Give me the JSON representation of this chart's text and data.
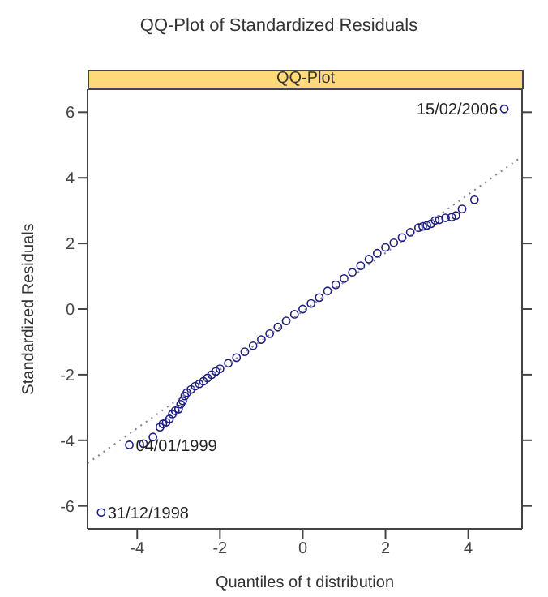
{
  "chart_data": {
    "type": "scatter",
    "title": "QQ-Plot of Standardized Residuals",
    "subtitle": "QQ-Plot",
    "xlabel": "Quantiles of t distribution",
    "ylabel": "Standardized Residuals",
    "xlim": [
      -5.2,
      5.3
    ],
    "ylim": [
      -6.7,
      6.7
    ],
    "xticks": [
      -4,
      -2,
      0,
      2,
      4
    ],
    "yticks": [
      -6,
      -4,
      -2,
      0,
      2,
      4,
      6
    ],
    "marker": "circle",
    "series": [
      {
        "color": "#1c1c80",
        "x": [
          -4.87,
          -4.19,
          -3.85,
          -3.62,
          -3.45,
          -3.38,
          -3.3,
          -3.22,
          -3.15,
          -3.08,
          -3.0,
          -2.95,
          -2.9,
          -2.85,
          -2.8,
          -2.7,
          -2.6,
          -2.5,
          -2.4,
          -2.3,
          -2.2,
          -2.1,
          -2.0,
          -1.8,
          -1.6,
          -1.4,
          -1.2,
          -1.0,
          -0.8,
          -0.6,
          -0.4,
          -0.2,
          0,
          0.2,
          0.4,
          0.6,
          0.8,
          1.0,
          1.2,
          1.4,
          1.6,
          1.8,
          2.0,
          2.2,
          2.4,
          2.6,
          2.8,
          2.9,
          3.0,
          3.1,
          3.2,
          3.3,
          3.45,
          3.6,
          3.7,
          3.85,
          4.15,
          4.87
        ],
        "values": [
          -6.2,
          -4.14,
          -4.1,
          -3.9,
          -3.6,
          -3.5,
          -3.45,
          -3.35,
          -3.2,
          -3.1,
          -3.05,
          -2.9,
          -2.8,
          -2.65,
          -2.55,
          -2.45,
          -2.35,
          -2.28,
          -2.2,
          -2.1,
          -2.0,
          -1.9,
          -1.82,
          -1.65,
          -1.48,
          -1.3,
          -1.12,
          -0.93,
          -0.75,
          -0.55,
          -0.36,
          -0.16,
          0,
          0.17,
          0.35,
          0.55,
          0.74,
          0.93,
          1.12,
          1.32,
          1.52,
          1.7,
          1.88,
          2.02,
          2.18,
          2.34,
          2.48,
          2.52,
          2.55,
          2.6,
          2.7,
          2.72,
          2.78,
          2.8,
          2.85,
          3.05,
          3.33,
          6.1
        ]
      },
      {
        "type": "line",
        "marker": "none",
        "color": "#7f7f9f",
        "line_style": "dotted",
        "x": [
          -5.2,
          5.3
        ],
        "values": [
          -4.7,
          4.65
        ]
      }
    ],
    "annotations": [
      {
        "text": "15/02/2006",
        "x": 4.87,
        "y": 6.1
      },
      {
        "text": "04/01/1999",
        "x": -4.19,
        "y": -4.14
      },
      {
        "text": "31/12/1998",
        "x": -4.87,
        "y": -6.2
      }
    ]
  }
}
